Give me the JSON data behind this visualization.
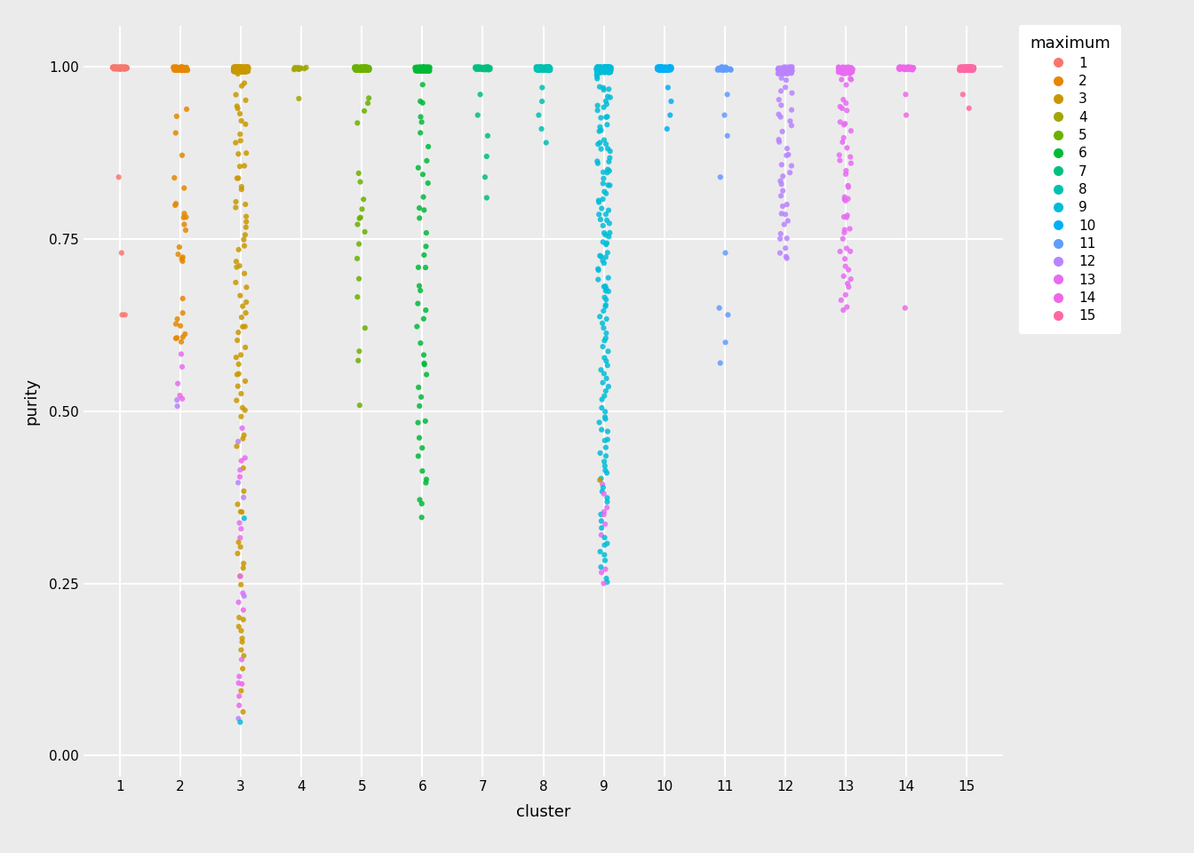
{
  "cluster_colors": {
    "1": "#F8766D",
    "2": "#E58700",
    "3": "#C99800",
    "4": "#A3A500",
    "5": "#6BB100",
    "6": "#00BA38",
    "7": "#00BF7D",
    "8": "#00C0AF",
    "9": "#00BCD8",
    "10": "#00B0F6",
    "11": "#619CFF",
    "12": "#B983FF",
    "13": "#E76BF3",
    "14": "#F066EA",
    "15": "#FF67A4"
  },
  "xlabel": "cluster",
  "ylabel": "purity",
  "background_color": "#EBEBEB",
  "panel_background": "#EBEBEB",
  "grid_color": "#FFFFFF",
  "ylim": [
    -0.03,
    1.06
  ],
  "xlim": [
    0.4,
    15.6
  ],
  "yticks": [
    0.0,
    0.25,
    0.5,
    0.75,
    1.0
  ],
  "xticks": [
    1,
    2,
    3,
    4,
    5,
    6,
    7,
    8,
    9,
    10,
    11,
    12,
    13,
    14,
    15
  ],
  "point_size": 20,
  "point_alpha": 0.85,
  "jitter_strength": 0.12
}
